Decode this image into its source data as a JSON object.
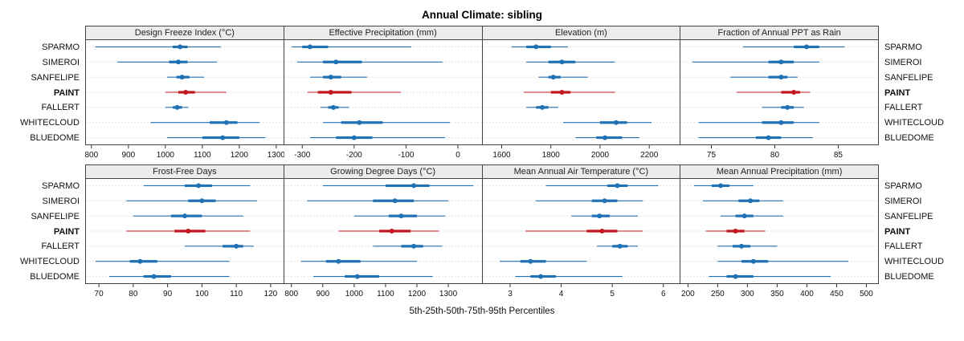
{
  "title": "Annual Climate: sibling",
  "footer": "5th-25th-50th-75th-95th Percentiles",
  "sites": [
    "SPARMO",
    "SIMEROI",
    "SANFELIPE",
    "PAINT",
    "FALLERT",
    "WHITECLOUD",
    "BLUEDOME"
  ],
  "highlight_site": "PAINT",
  "percentiles": [
    5,
    25,
    50,
    75,
    95
  ],
  "colors": {
    "series": "#2171B5",
    "highlight": "#C0181D",
    "strip_bg": "#ececec",
    "grid": "#c8c8c8",
    "border": "#444444"
  },
  "chart_data": [
    {
      "type": "percentile-dot-plot",
      "title": "Design Freeze Index (°C)",
      "xlim": [
        783,
        1322
      ],
      "xticks": [
        800,
        900,
        1000,
        1100,
        1200,
        1300
      ],
      "values": [
        [
          810,
          1020,
          1040,
          1060,
          1150
        ],
        [
          870,
          1010,
          1035,
          1060,
          1140
        ],
        [
          1005,
          1030,
          1045,
          1065,
          1105
        ],
        [
          1000,
          1035,
          1055,
          1080,
          1165
        ],
        [
          1000,
          1020,
          1032,
          1045,
          1062
        ],
        [
          960,
          1120,
          1165,
          1195,
          1255
        ],
        [
          1005,
          1100,
          1155,
          1200,
          1270
        ]
      ]
    },
    {
      "type": "percentile-dot-plot",
      "title": "Effective Precipitation (mm)",
      "xlim": [
        -336,
        48
      ],
      "xticks": [
        -300,
        -200,
        -100,
        0
      ],
      "values": [
        [
          -320,
          -300,
          -285,
          -250,
          -90
        ],
        [
          -310,
          -260,
          -235,
          -185,
          -30
        ],
        [
          -285,
          -260,
          -245,
          -225,
          -175
        ],
        [
          -290,
          -270,
          -245,
          -205,
          -110
        ],
        [
          -265,
          -250,
          -240,
          -230,
          -210
        ],
        [
          -260,
          -225,
          -190,
          -145,
          -15
        ],
        [
          -285,
          -235,
          -200,
          -165,
          -25
        ]
      ]
    },
    {
      "type": "percentile-dot-plot",
      "title": "Elevation (m)",
      "xlim": [
        1520,
        2330
      ],
      "xticks": [
        1600,
        1800,
        2000,
        2200
      ],
      "values": [
        [
          1640,
          1700,
          1740,
          1800,
          1870
        ],
        [
          1700,
          1790,
          1845,
          1900,
          2060
        ],
        [
          1750,
          1790,
          1810,
          1840,
          1950
        ],
        [
          1690,
          1800,
          1845,
          1880,
          2060
        ],
        [
          1700,
          1740,
          1765,
          1790,
          1830
        ],
        [
          1850,
          2000,
          2065,
          2110,
          2210
        ],
        [
          1900,
          1985,
          2020,
          2090,
          2160
        ]
      ]
    },
    {
      "type": "percentile-dot-plot",
      "title": "Fraction of Annual PPT as Rain",
      "xlim": [
        72.5,
        88.2
      ],
      "xticks": [
        75,
        80,
        85
      ],
      "values": [
        [
          77.5,
          81.5,
          82.5,
          83.5,
          85.5
        ],
        [
          73.5,
          79.5,
          80.5,
          81.5,
          83.5
        ],
        [
          76.5,
          79.5,
          80.5,
          81.0,
          81.8
        ],
        [
          77.0,
          80.5,
          81.5,
          82.0,
          82.8
        ],
        [
          79.0,
          80.5,
          81.0,
          81.5,
          82.3
        ],
        [
          74.0,
          79.0,
          80.5,
          81.5,
          83.5
        ],
        [
          74.0,
          78.5,
          79.5,
          80.5,
          83.0
        ]
      ]
    },
    {
      "type": "percentile-dot-plot",
      "title": "Frost-Free Days",
      "xlim": [
        66,
        124
      ],
      "xticks": [
        70,
        80,
        90,
        100,
        110,
        120
      ],
      "values": [
        [
          83,
          95,
          99,
          103,
          114
        ],
        [
          78,
          96,
          100,
          104,
          116
        ],
        [
          80,
          91,
          95,
          100,
          112
        ],
        [
          78,
          92,
          96,
          101,
          114
        ],
        [
          95,
          106,
          110,
          112,
          115
        ],
        [
          69,
          79,
          82,
          87,
          108
        ],
        [
          73,
          83,
          86,
          91,
          108
        ]
      ]
    },
    {
      "type": "percentile-dot-plot",
      "title": "Growing Degree Days (°C)",
      "xlim": [
        775,
        1410
      ],
      "xticks": [
        800,
        900,
        1000,
        1100,
        1200,
        1300
      ],
      "values": [
        [
          900,
          1100,
          1190,
          1240,
          1380
        ],
        [
          850,
          1060,
          1130,
          1190,
          1300
        ],
        [
          1000,
          1110,
          1150,
          1200,
          1290
        ],
        [
          950,
          1080,
          1120,
          1180,
          1270
        ],
        [
          1060,
          1150,
          1190,
          1220,
          1280
        ],
        [
          830,
          910,
          950,
          1020,
          1200
        ],
        [
          870,
          970,
          1010,
          1080,
          1250
        ]
      ]
    },
    {
      "type": "percentile-dot-plot",
      "title": "Mean Annual Air Temperature (°C)",
      "xlim": [
        2.45,
        6.35
      ],
      "xticks": [
        3,
        4,
        5,
        6
      ],
      "values": [
        [
          3.7,
          4.9,
          5.1,
          5.3,
          5.9
        ],
        [
          3.5,
          4.6,
          4.85,
          5.1,
          5.6
        ],
        [
          4.2,
          4.6,
          4.75,
          4.95,
          5.5
        ],
        [
          3.3,
          4.5,
          4.8,
          5.1,
          5.6
        ],
        [
          4.7,
          5.0,
          5.15,
          5.3,
          5.5
        ],
        [
          2.8,
          3.2,
          3.4,
          3.7,
          4.5
        ],
        [
          3.1,
          3.4,
          3.6,
          3.9,
          5.2
        ]
      ]
    },
    {
      "type": "percentile-dot-plot",
      "title": "Mean Annual Precipitation (mm)",
      "xlim": [
        186,
        521
      ],
      "xticks": [
        200,
        250,
        300,
        350,
        400,
        450,
        500
      ],
      "values": [
        [
          210,
          240,
          255,
          270,
          310
        ],
        [
          225,
          285,
          305,
          320,
          360
        ],
        [
          255,
          280,
          295,
          310,
          360
        ],
        [
          230,
          265,
          280,
          295,
          330
        ],
        [
          250,
          275,
          290,
          305,
          350
        ],
        [
          250,
          290,
          310,
          335,
          470
        ],
        [
          235,
          265,
          280,
          310,
          440
        ]
      ]
    }
  ]
}
